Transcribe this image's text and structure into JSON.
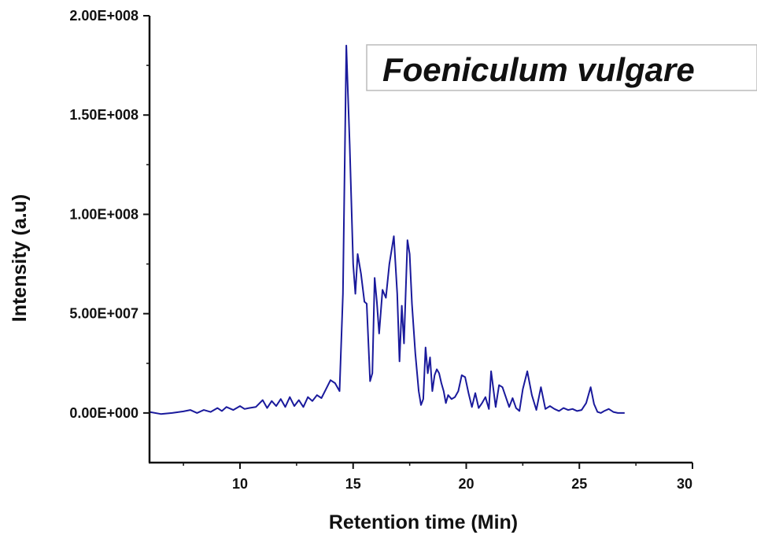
{
  "chart_data": {
    "type": "line",
    "title": "",
    "xlabel": "Retention time (Min)",
    "ylabel": "Intensity (a.u)",
    "xlim": [
      6,
      30
    ],
    "ylim": [
      -25000000,
      200000000
    ],
    "grid": false,
    "legend_position": "top-right",
    "x_ticks": [
      10,
      15,
      20,
      25,
      30
    ],
    "x_tick_labels": [
      "10",
      "15",
      "20",
      "25",
      "30"
    ],
    "y_ticks": [
      0,
      50000000,
      100000000,
      150000000,
      200000000
    ],
    "y_tick_labels": [
      "0.00E+000",
      "5.00E+007",
      "1.00E+008",
      "1.50E+008",
      "2.00E+008"
    ],
    "series": [
      {
        "name": "Foeniculum vulgare",
        "color": "#1a1a9c",
        "x": [
          6.0,
          6.5,
          7.0,
          7.5,
          7.8,
          8.1,
          8.4,
          8.7,
          9.0,
          9.2,
          9.4,
          9.7,
          10.0,
          10.2,
          10.4,
          10.7,
          11.0,
          11.2,
          11.4,
          11.6,
          11.8,
          12.0,
          12.2,
          12.4,
          12.6,
          12.8,
          13.0,
          13.2,
          13.4,
          13.6,
          13.8,
          14.0,
          14.2,
          14.4,
          14.55,
          14.7,
          14.85,
          15.0,
          15.1,
          15.2,
          15.35,
          15.5,
          15.6,
          15.75,
          15.85,
          15.95,
          16.05,
          16.15,
          16.3,
          16.45,
          16.6,
          16.8,
          16.95,
          17.05,
          17.15,
          17.25,
          17.4,
          17.5,
          17.6,
          17.75,
          17.9,
          18.0,
          18.1,
          18.2,
          18.3,
          18.4,
          18.5,
          18.6,
          18.7,
          18.8,
          18.9,
          19.0,
          19.1,
          19.2,
          19.35,
          19.5,
          19.65,
          19.8,
          19.95,
          20.1,
          20.25,
          20.4,
          20.55,
          20.7,
          20.85,
          21.0,
          21.1,
          21.2,
          21.3,
          21.45,
          21.6,
          21.75,
          21.9,
          22.05,
          22.2,
          22.35,
          22.5,
          22.7,
          22.9,
          23.1,
          23.3,
          23.5,
          23.7,
          23.9,
          24.1,
          24.3,
          24.5,
          24.7,
          24.9,
          25.1,
          25.3,
          25.5,
          25.65,
          25.8,
          25.95,
          26.1,
          26.3,
          26.5,
          26.7,
          27.0
        ],
        "y": [
          500000,
          -500000,
          0,
          800000,
          1500000,
          0,
          1500000,
          500000,
          2500000,
          1000000,
          3000000,
          1500000,
          3500000,
          2000000,
          2500000,
          3000000,
          6500000,
          2500000,
          6000000,
          3500000,
          7000000,
          3000000,
          8000000,
          3500000,
          6500000,
          3000000,
          8000000,
          6000000,
          9000000,
          7500000,
          12000000,
          16500000,
          15000000,
          11000000,
          60000000,
          185000000,
          135000000,
          75000000,
          60000000,
          80000000,
          70000000,
          56000000,
          55000000,
          16000000,
          20000000,
          68000000,
          56000000,
          40000000,
          62000000,
          58000000,
          75000000,
          89000000,
          60000000,
          26000000,
          54000000,
          35000000,
          87000000,
          80000000,
          55000000,
          30000000,
          11000000,
          4000000,
          7000000,
          33000000,
          20000000,
          28000000,
          11000000,
          19000000,
          22000000,
          20000000,
          15000000,
          11000000,
          5000000,
          9000000,
          7000000,
          8000000,
          11000000,
          19000000,
          18000000,
          10000000,
          3000000,
          10000000,
          2500000,
          5000000,
          8000000,
          2000000,
          21000000,
          12000000,
          3000000,
          14000000,
          13000000,
          8000000,
          3000000,
          7500000,
          2500000,
          1000000,
          12000000,
          21000000,
          9000000,
          1500000,
          13000000,
          2000000,
          3500000,
          2000000,
          1000000,
          2500000,
          1500000,
          2000000,
          1000000,
          1500000,
          5000000,
          13000000,
          4500000,
          500000,
          0,
          1000000,
          2000000,
          500000,
          0,
          0
        ]
      }
    ]
  }
}
